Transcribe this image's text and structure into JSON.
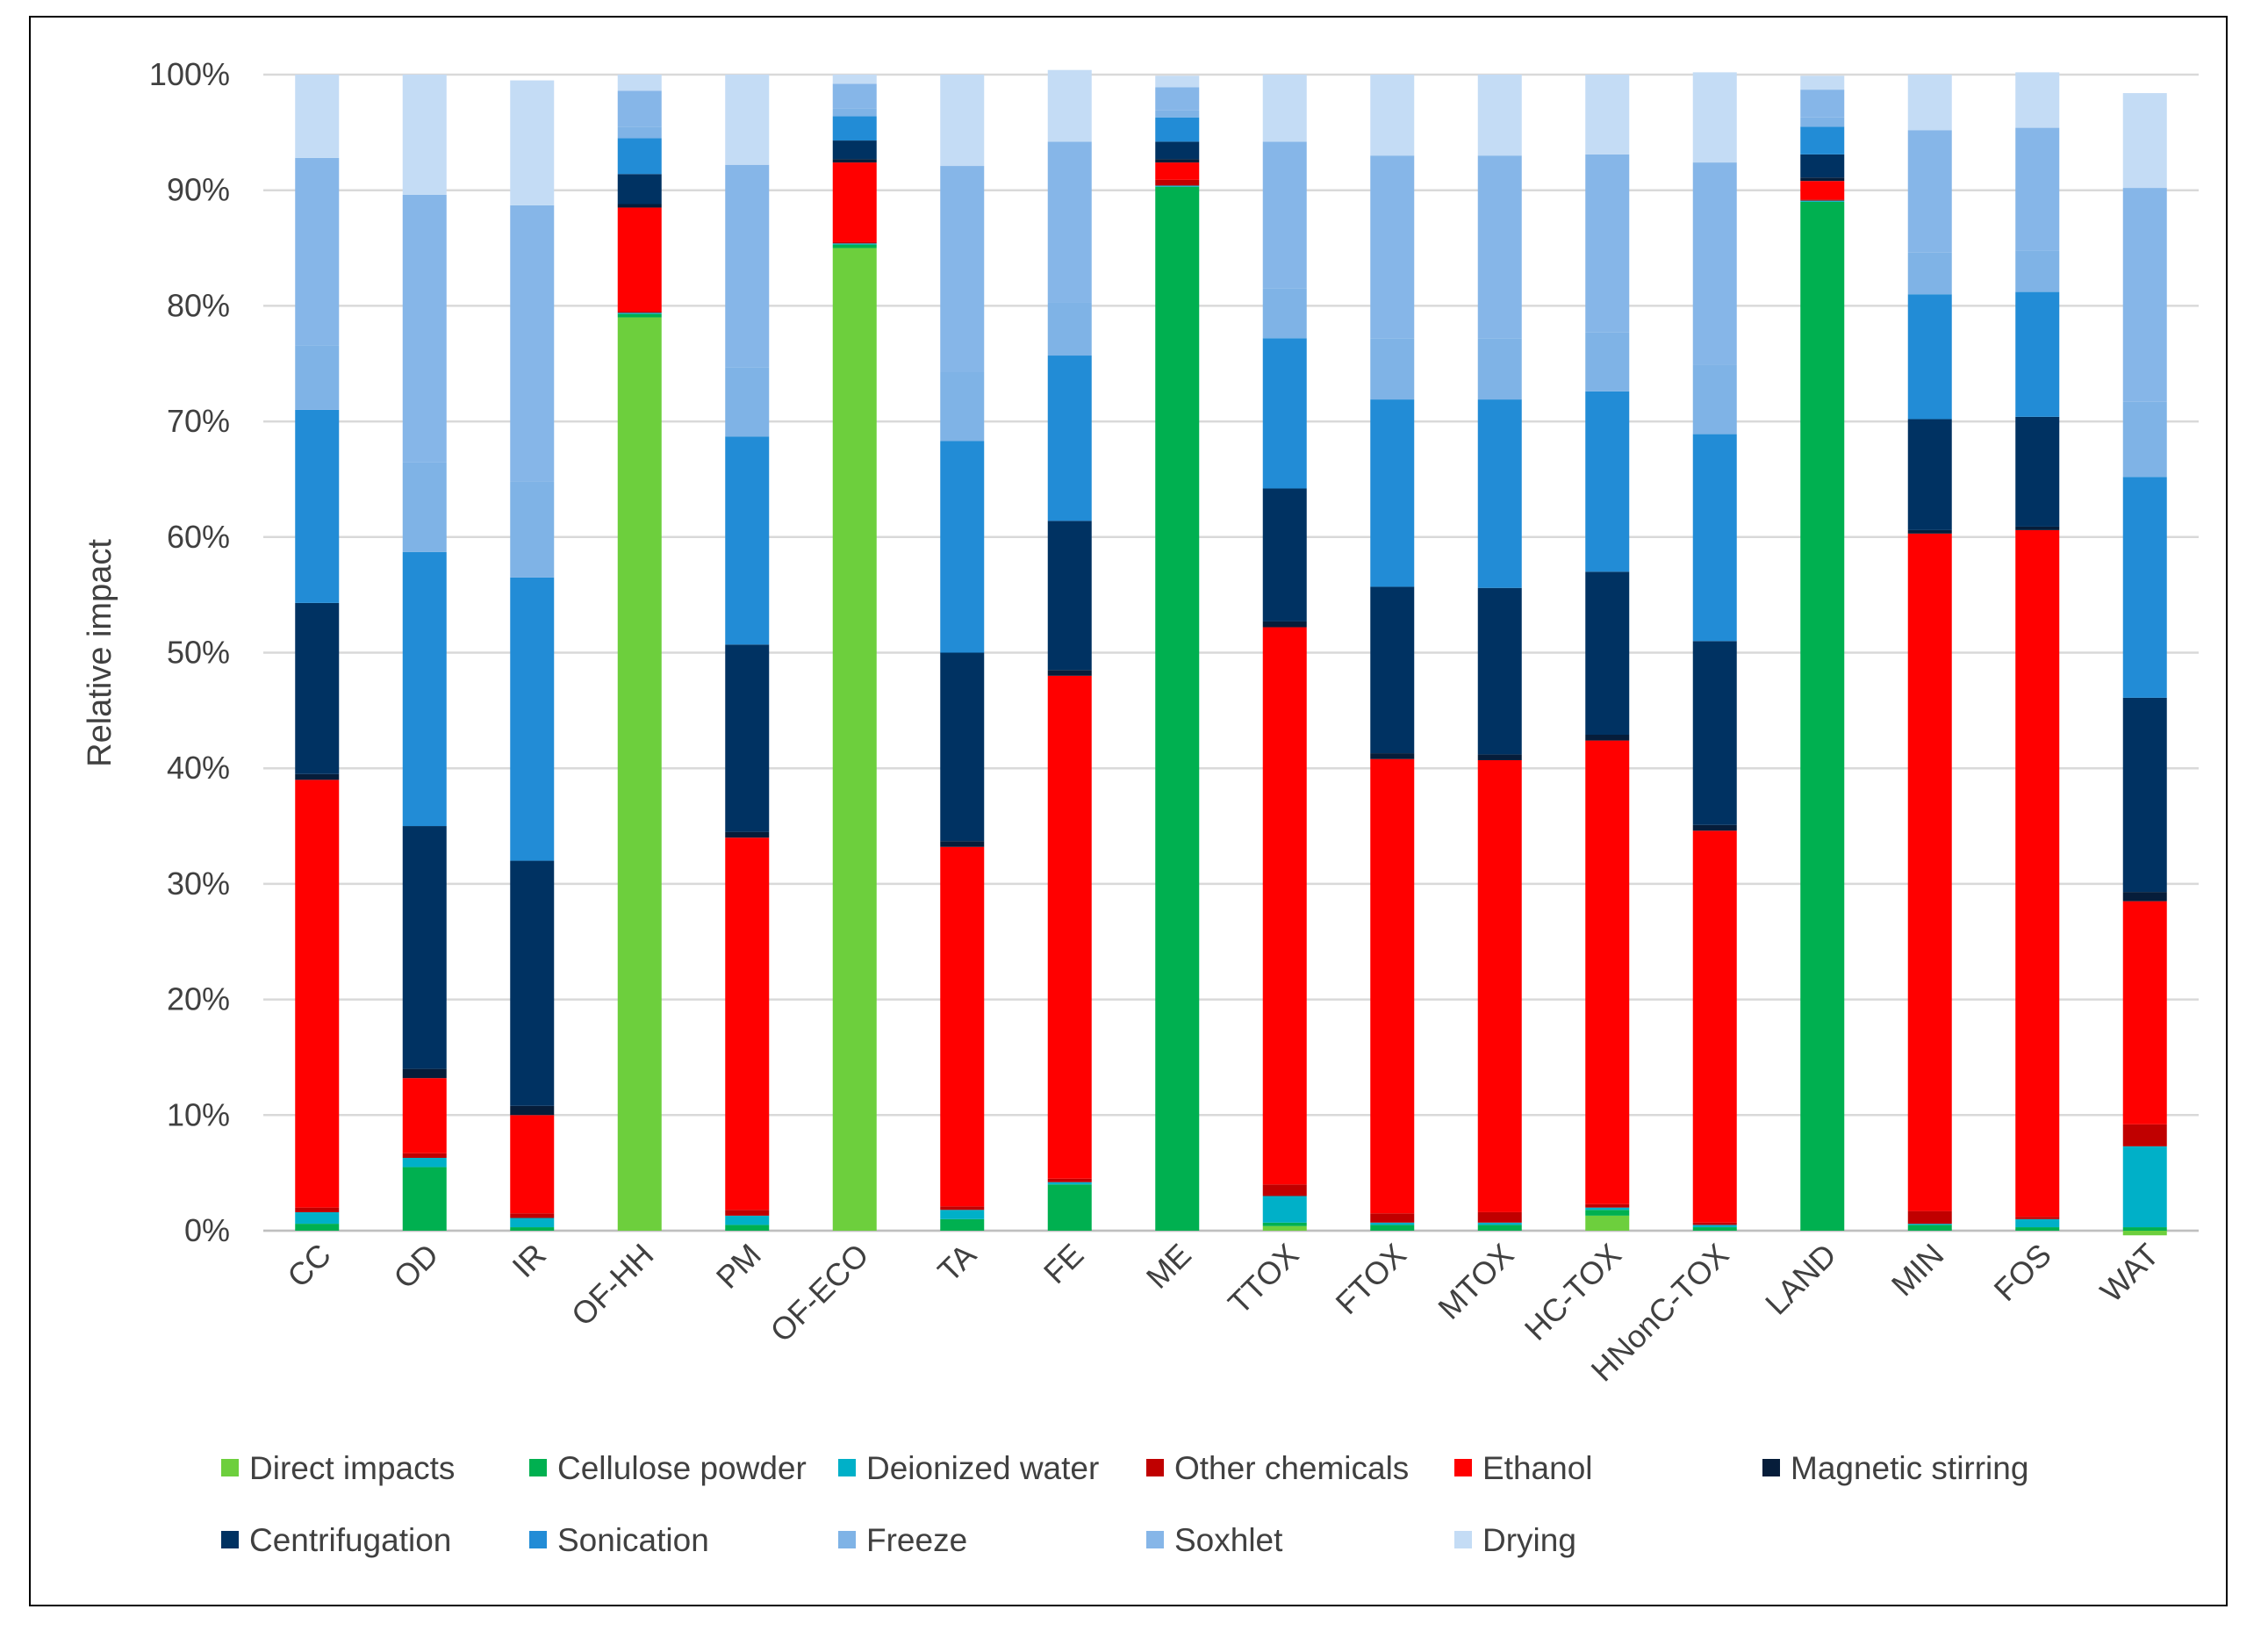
{
  "chart_data": {
    "type": "bar",
    "stacked": true,
    "title": "",
    "xlabel": "",
    "ylabel": "Relative impact",
    "ylim": [
      0,
      100
    ],
    "yticks": [
      "0%",
      "10%",
      "20%",
      "30%",
      "40%",
      "50%",
      "60%",
      "70%",
      "80%",
      "90%",
      "100%"
    ],
    "grid": true,
    "legend_position": "bottom",
    "categories": [
      "CC",
      "OD",
      "IR",
      "OF-HH",
      "PM",
      "OF-ECO",
      "TA",
      "FE",
      "ME",
      "TTOX",
      "FTOX",
      "MTOX",
      "HC-TOX",
      "HNonC-TOX",
      "LAND",
      "MIN",
      "FOS",
      "WAT"
    ],
    "series": [
      {
        "name": "Direct impacts",
        "color": "#6dcf3d",
        "values": [
          0,
          0,
          0,
          79,
          0,
          85,
          0,
          0,
          0,
          0.4,
          0,
          0,
          1.3,
          0,
          0,
          0,
          0,
          -0.4
        ]
      },
      {
        "name": "Cellulose powder",
        "color": "#00b050",
        "values": [
          0.6,
          5.5,
          0.3,
          0.3,
          0.5,
          0.3,
          1.0,
          4.0,
          90.3,
          0.3,
          0.5,
          0.5,
          0.5,
          0.3,
          89.0,
          0.5,
          0.3,
          0.3
        ]
      },
      {
        "name": "Deionized water",
        "color": "#00b0c8",
        "values": [
          1.0,
          0.8,
          0.8,
          0.1,
          0.8,
          0.1,
          0.8,
          0.2,
          0.1,
          2.3,
          0.2,
          0.2,
          0.2,
          0.2,
          0.1,
          0.1,
          0.7,
          7.0
        ]
      },
      {
        "name": "Other chemicals",
        "color": "#c00000",
        "values": [
          0.4,
          0.4,
          0.4,
          0.1,
          0.5,
          0.1,
          0.3,
          0.3,
          0.5,
          1.0,
          0.8,
          0.9,
          0.3,
          0.2,
          0.1,
          1.1,
          0.2,
          1.9
        ]
      },
      {
        "name": "Ethanol",
        "color": "#ff0000",
        "values": [
          37.0,
          6.5,
          8.5,
          9.0,
          32.2,
          6.9,
          31.1,
          43.5,
          1.5,
          48.2,
          39.3,
          39.1,
          40.1,
          33.9,
          1.6,
          58.6,
          59.4,
          19.3
        ]
      },
      {
        "name": "Magnetic stirring",
        "color": "#061d3a",
        "values": [
          0.5,
          0.8,
          0.8,
          0.3,
          0.5,
          0.3,
          0.5,
          0.5,
          0.3,
          0.5,
          0.5,
          0.5,
          0.5,
          0.5,
          0.3,
          0.3,
          0.3,
          0.8
        ]
      },
      {
        "name": "Centrifugation",
        "color": "#003262",
        "values": [
          14.8,
          21.0,
          21.2,
          2.6,
          16.2,
          1.6,
          16.3,
          12.9,
          1.5,
          11.5,
          14.4,
          14.4,
          14.1,
          15.9,
          2.0,
          9.6,
          9.5,
          16.8
        ]
      },
      {
        "name": "Sonication",
        "color": "#228cd6",
        "values": [
          16.7,
          23.7,
          24.5,
          3.1,
          18.0,
          2.1,
          18.3,
          14.3,
          2.1,
          13.0,
          16.2,
          16.3,
          15.6,
          17.9,
          2.4,
          10.8,
          10.8,
          19.1
        ]
      },
      {
        "name": "Freeze",
        "color": "#7fb3e6",
        "values": [
          5.6,
          7.8,
          8.3,
          1.0,
          6.0,
          0.7,
          6.0,
          4.6,
          0.6,
          4.3,
          5.3,
          5.3,
          5.1,
          6.0,
          0.8,
          3.6,
          3.6,
          6.5
        ]
      },
      {
        "name": "Soxhlet",
        "color": "#86b6e8",
        "values": [
          16.2,
          23.1,
          23.9,
          3.1,
          17.5,
          2.1,
          17.8,
          13.9,
          2.0,
          12.7,
          15.8,
          15.8,
          15.4,
          17.5,
          2.4,
          10.6,
          10.6,
          18.5
        ]
      },
      {
        "name": "Drying",
        "color": "#c4dcf5",
        "values": [
          7.2,
          10.4,
          10.8,
          1.4,
          7.8,
          0.8,
          7.9,
          6.2,
          1.0,
          5.8,
          7.0,
          7.0,
          6.9,
          7.8,
          1.2,
          4.8,
          4.8,
          8.2
        ]
      }
    ]
  }
}
